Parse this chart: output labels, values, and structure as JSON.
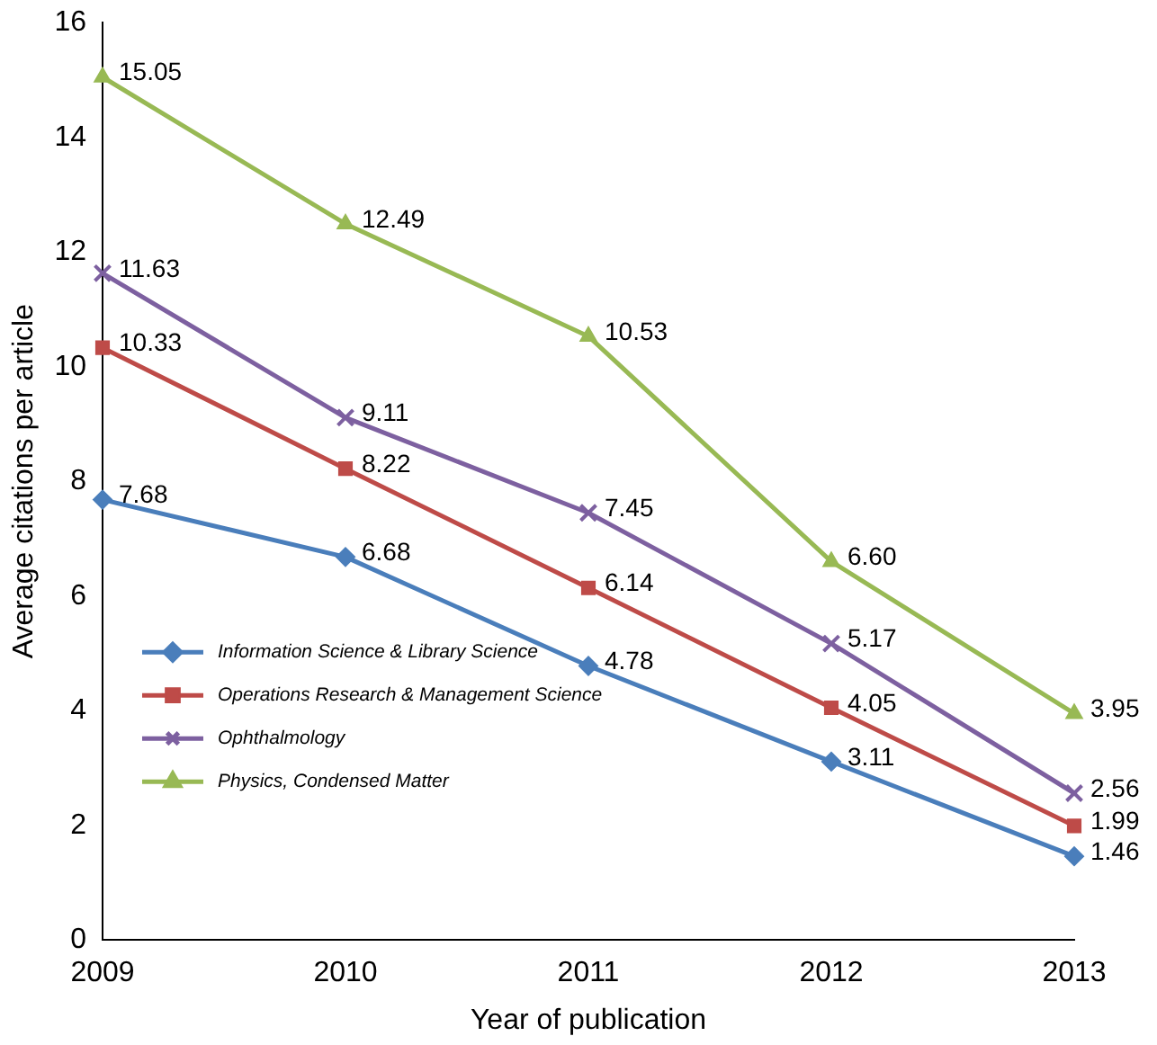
{
  "chart_data": {
    "type": "line",
    "xlabel": "Year of publication",
    "ylabel": "Average citations per article",
    "categories": [
      "2009",
      "2010",
      "2011",
      "2012",
      "2013"
    ],
    "ylim": [
      0,
      16
    ],
    "yticks": [
      0,
      2,
      4,
      6,
      8,
      10,
      12,
      14,
      16
    ],
    "grid": false,
    "legend": "bottom left",
    "series": [
      {
        "name": "Information Science & Library Science",
        "color": "#4a7ebb",
        "marker": "diamond",
        "values": [
          7.68,
          6.68,
          4.78,
          3.11,
          1.46
        ],
        "value_labels": [
          "7.68",
          "6.68",
          "4.78",
          "3.11",
          "1.46"
        ]
      },
      {
        "name": "Operations Research & Management Science",
        "color": "#be4b48",
        "marker": "square",
        "values": [
          10.33,
          8.22,
          6.14,
          4.05,
          1.99
        ],
        "value_labels": [
          "10.33",
          "8.22",
          "6.14",
          "4.05",
          "1.99"
        ]
      },
      {
        "name": "Ophthalmology",
        "color": "#7d60a0",
        "marker": "cross",
        "values": [
          11.63,
          9.11,
          7.45,
          5.17,
          2.56
        ],
        "value_labels": [
          "11.63",
          "9.11",
          "7.45",
          "5.17",
          "2.56"
        ]
      },
      {
        "name": "Physics, Condensed Matter",
        "color": "#98b954",
        "marker": "triangle",
        "values": [
          15.05,
          12.49,
          10.53,
          6.6,
          3.95
        ],
        "value_labels": [
          "15.05",
          "12.49",
          "10.53",
          "6.60",
          "3.95"
        ]
      }
    ]
  }
}
